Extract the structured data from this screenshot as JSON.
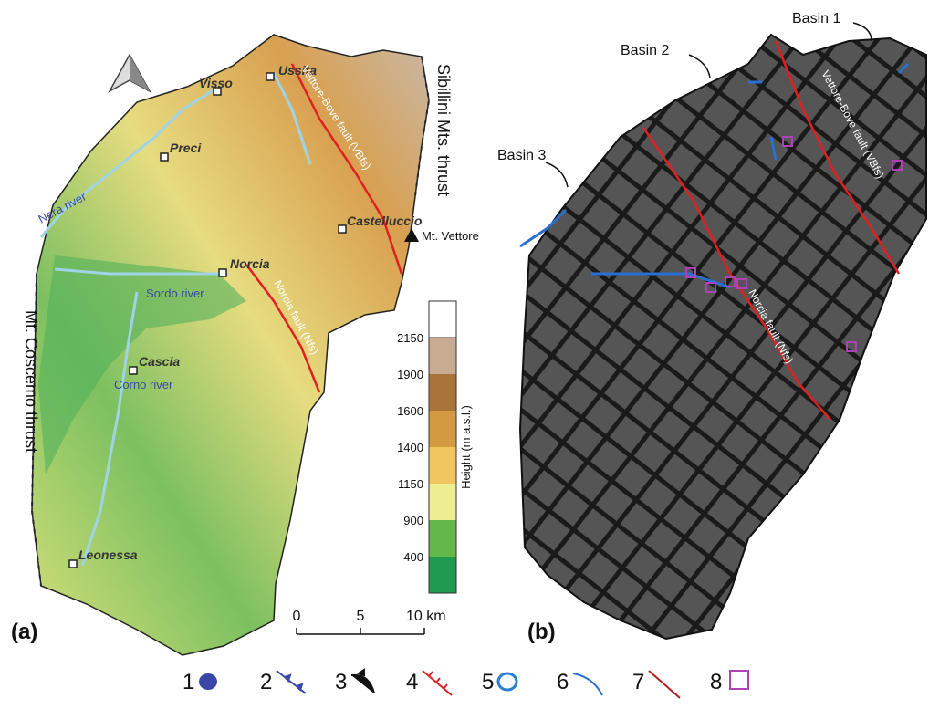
{
  "panel_a": {
    "label": "(a)",
    "towns": [
      "Ussita",
      "Visso",
      "Preci",
      "Castelluccio",
      "Norcia",
      "Cascia",
      "Leonessa"
    ],
    "peak": "Mt. Vettore",
    "rivers": [
      "Nera river",
      "Sordo river",
      "Corno river"
    ],
    "faults": [
      "Vettore-Bove fault (VBfs)",
      "Norcia fault (Nfs)"
    ],
    "thrusts": [
      "Sibillini Mts. thrust",
      "Mt. Coscemo thrust"
    ],
    "colorbar": {
      "label": "Height (m a.s.l.)",
      "ticks": [
        "2150",
        "1900",
        "1600",
        "1400",
        "1150",
        "900",
        "400"
      ]
    },
    "scale": [
      "0",
      "5",
      "10 km"
    ]
  },
  "panel_b": {
    "label": "(b)",
    "basins": [
      "Basin 1",
      "Basin 2",
      "Basin 3"
    ],
    "faults": [
      "Vettore-Bove fault (VBfs)",
      "Norcia fault (Nfs)"
    ]
  },
  "legend": [
    "1",
    "2",
    "3",
    "4",
    "5",
    "6",
    "7",
    "8"
  ]
}
